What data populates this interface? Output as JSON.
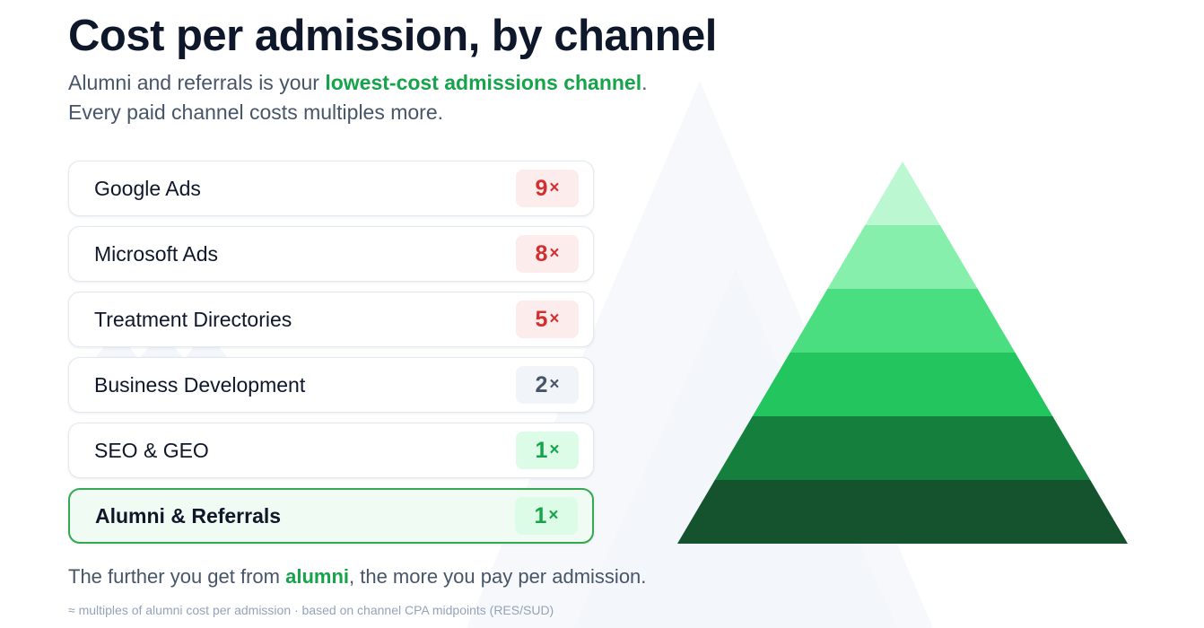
{
  "title": "Cost per admission, by channel",
  "subtitle": {
    "pre": "Alumni and referrals is your ",
    "highlight": "lowest-cost admissions channel",
    "post": ".",
    "line2": "Every paid channel costs multiples more."
  },
  "chart_data": {
    "type": "table",
    "unit_suffix": "×",
    "rows": [
      {
        "label": "Google Ads",
        "value": 9,
        "value_label": "9",
        "level": "high"
      },
      {
        "label": "Microsoft Ads",
        "value": 8,
        "value_label": "8",
        "level": "high"
      },
      {
        "label": "Treatment Directories",
        "value": 5,
        "value_label": "5",
        "level": "high"
      },
      {
        "label": "Business Development",
        "value": 2,
        "value_label": "2",
        "level": "mid"
      },
      {
        "label": "SEO & GEO",
        "value": 1,
        "value_label": "1",
        "level": "low"
      },
      {
        "label": "Alumni & Referrals",
        "value": 1,
        "value_label": "1",
        "level": "low",
        "highlighted": true
      }
    ]
  },
  "pyramid": {
    "tiers": 6,
    "colors": [
      "#bbf7d0",
      "#86efac",
      "#4ade80",
      "#22c55e",
      "#15803d",
      "#14532d"
    ]
  },
  "colors": {
    "accent_green": "#16a34a",
    "high_text": "#d32f2f",
    "high_bg": "#fdecec",
    "mid_text": "#475569",
    "mid_bg": "#f1f5f9",
    "low_text": "#16a34a",
    "low_bg": "#dcfce7"
  },
  "footer": {
    "pre": "The further you get from ",
    "highlight": "alumni",
    "post": ", the more you pay per admission."
  },
  "note": "≈ multiples of alumni cost per admission · based on channel CPA midpoints (RES/SUD)"
}
